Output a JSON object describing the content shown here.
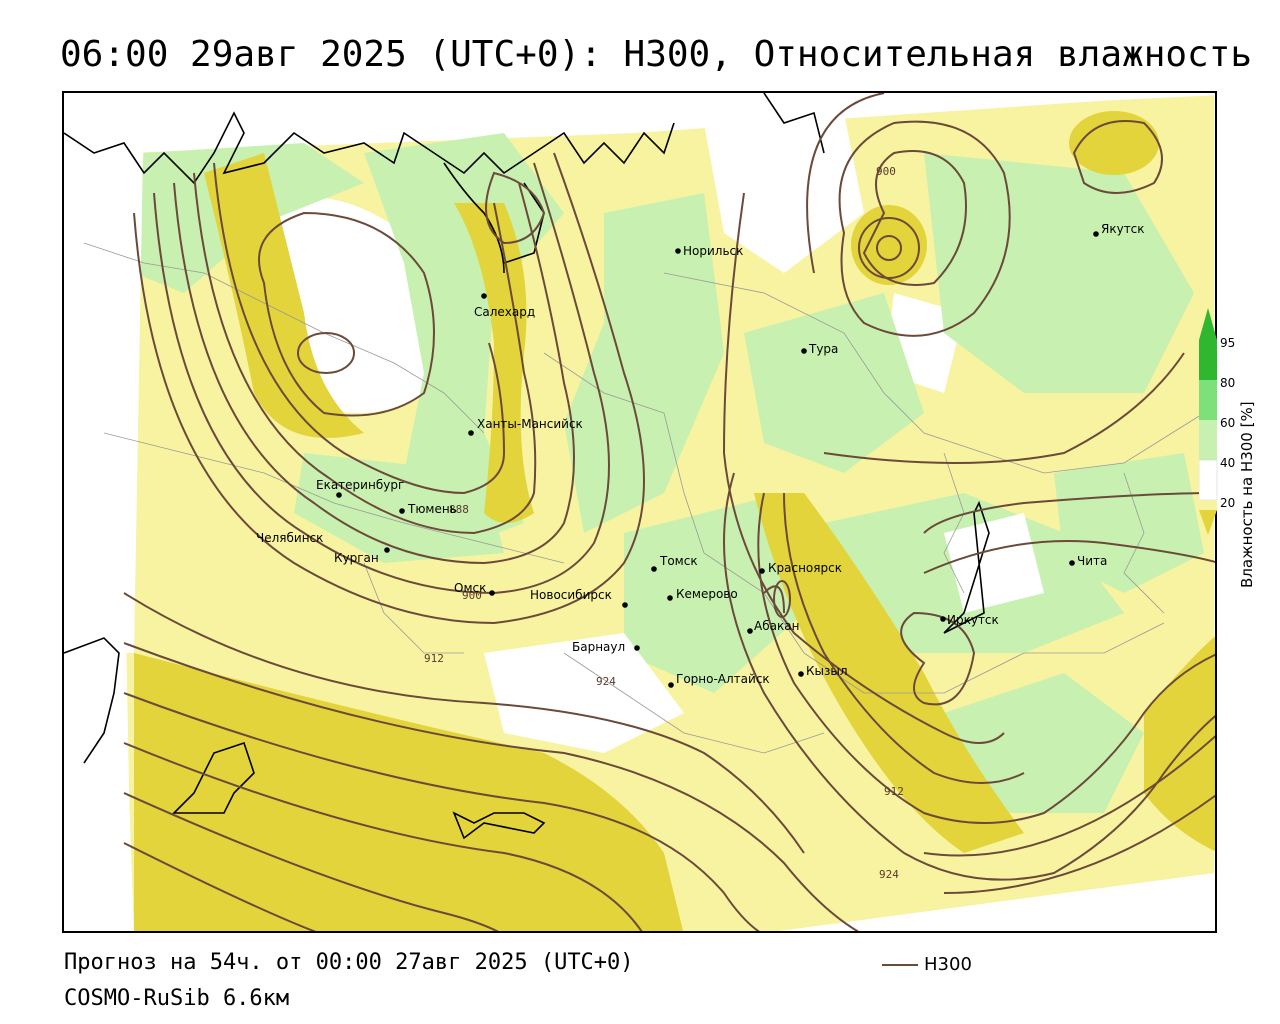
{
  "header": {
    "title": "06:00 29авг 2025 (UTC+0): H300, Относительная влажность"
  },
  "footer": {
    "forecast": "Прогноз на 54ч. от 00:00 27авг 2025 (UTC+0)",
    "model": "COSMO-RuSib 6.6км",
    "legend_label": "H300"
  },
  "colorbar": {
    "title": "Влажность на H300 [%]",
    "ticks": [
      "95",
      "80",
      "60",
      "40",
      "20"
    ],
    "colors": {
      "20": "#f7f3a0",
      "40": "#ffffff",
      "60": "#c8f0b0",
      "80": "#7de07a",
      "95": "#2fb82f",
      "dry": "#e2d43a"
    }
  },
  "cities": [
    {
      "name": "Норильск"
    },
    {
      "name": "Салехард"
    },
    {
      "name": "Якутск"
    },
    {
      "name": "Тура"
    },
    {
      "name": "Ханты-Мансийск"
    },
    {
      "name": "Екатеринбург"
    },
    {
      "name": "Тюмень"
    },
    {
      "name": "Челябинск"
    },
    {
      "name": "Курган"
    },
    {
      "name": "Омск"
    },
    {
      "name": "Новосибирск"
    },
    {
      "name": "Томск"
    },
    {
      "name": "Кемерово"
    },
    {
      "name": "Красноярск"
    },
    {
      "name": "Барнаул"
    },
    {
      "name": "Абакан"
    },
    {
      "name": "Горно-Алтайск"
    },
    {
      "name": "Кызыл"
    },
    {
      "name": "Иркутск"
    },
    {
      "name": "Чита"
    }
  ],
  "contour_labels": [
    "900",
    "888",
    "900",
    "912",
    "924",
    "912",
    "924"
  ],
  "colors": {
    "contour": "#6b4a3a",
    "dry": "#e2d43a",
    "light_yellow": "#f7f3a0",
    "light_green": "#c8f0b0"
  }
}
